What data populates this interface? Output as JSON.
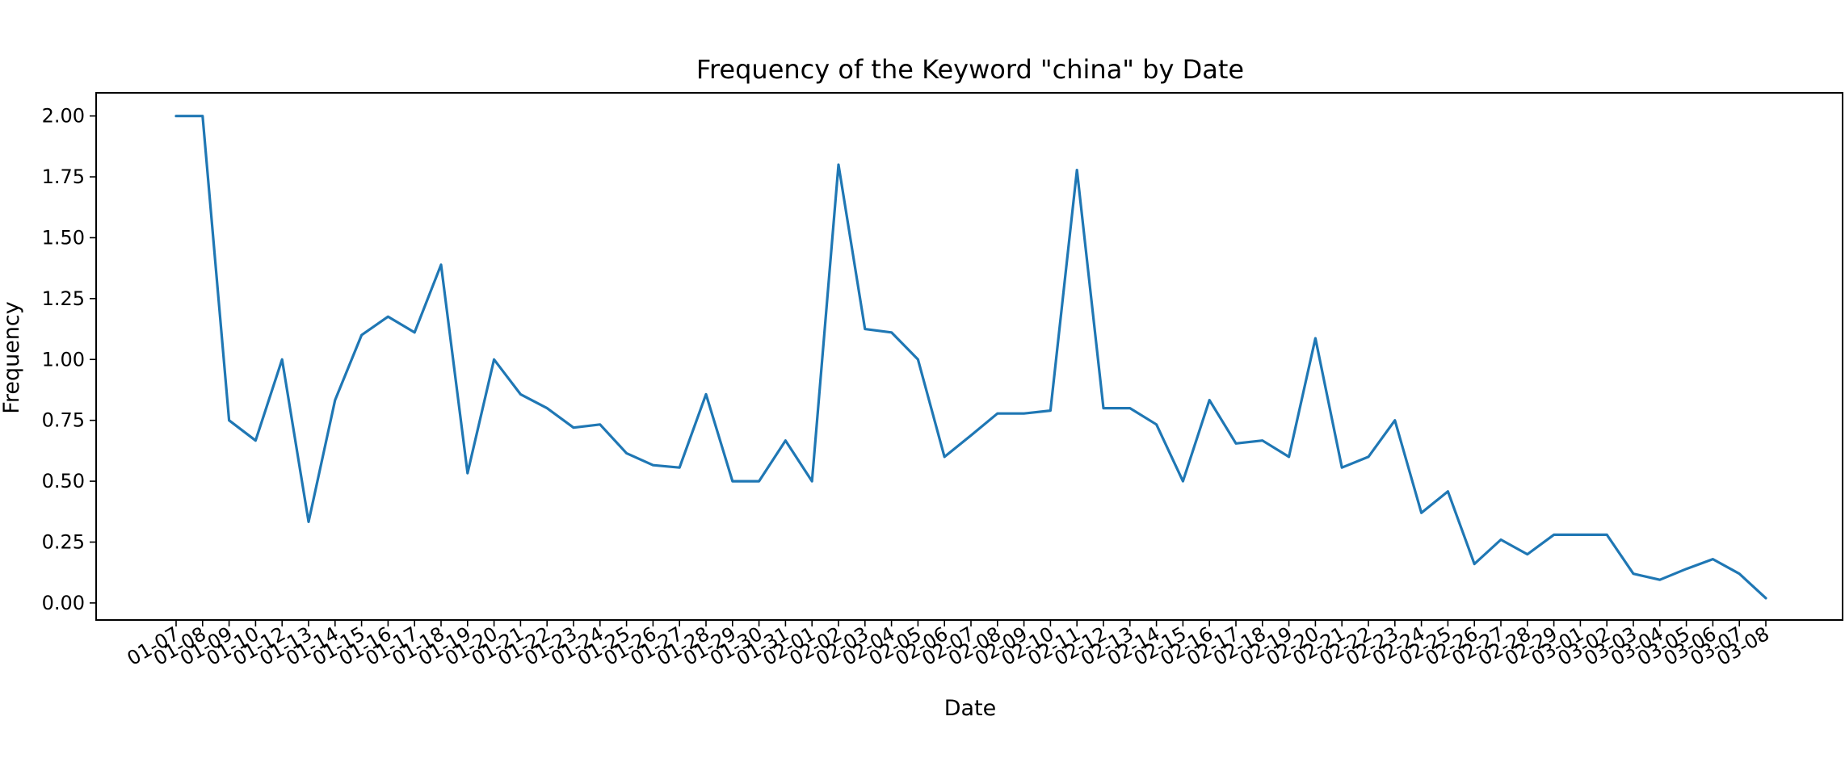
{
  "chart_data": {
    "type": "line",
    "title": "Frequency of the Keyword \"china\" by Date",
    "xlabel": "Date",
    "ylabel": "Frequency",
    "ylim": [
      -0.07,
      2.095
    ],
    "yticks": [
      0.0,
      0.25,
      0.5,
      0.75,
      1.0,
      1.25,
      1.5,
      1.75,
      2.0
    ],
    "ytick_labels": [
      "0.00",
      "0.25",
      "0.50",
      "0.75",
      "1.00",
      "1.25",
      "1.50",
      "1.75",
      "2.00"
    ],
    "grid": false,
    "line_color": "#1f77b4",
    "categories": [
      "01-07",
      "01-08",
      "01-09",
      "01-10",
      "01-12",
      "01-13",
      "01-14",
      "01-15",
      "01-16",
      "01-17",
      "01-18",
      "01-19",
      "01-20",
      "01-21",
      "01-22",
      "01-23",
      "01-24",
      "01-25",
      "01-26",
      "01-27",
      "01-28",
      "01-29",
      "01-30",
      "01-31",
      "02-01",
      "02-02",
      "02-03",
      "02-04",
      "02-05",
      "02-06",
      "02-07",
      "02-08",
      "02-09",
      "02-10",
      "02-11",
      "02-12",
      "02-13",
      "02-14",
      "02-15",
      "02-16",
      "02-17",
      "02-18",
      "02-19",
      "02-20",
      "02-21",
      "02-22",
      "02-23",
      "02-24",
      "02-25",
      "02-26",
      "02-27",
      "02-28",
      "02-29",
      "03-01",
      "03-02",
      "03-03",
      "03-04",
      "03-05",
      "03-06",
      "03-07",
      "03-08"
    ],
    "series": [
      {
        "values": [
          2.0,
          2.0,
          0.75,
          0.667,
          1.0,
          0.333,
          0.833,
          1.1,
          1.176,
          1.111,
          1.389,
          0.533,
          1.0,
          0.857,
          0.8,
          0.72,
          0.733,
          0.615,
          0.566,
          0.556,
          0.857,
          0.5,
          0.5,
          0.667,
          0.5,
          1.8,
          1.125,
          1.111,
          1.0,
          0.6,
          0.688,
          0.778,
          0.778,
          0.79,
          1.778,
          0.8,
          0.8,
          0.733,
          0.5,
          0.833,
          0.655,
          0.667,
          0.6,
          1.087,
          0.556,
          0.6,
          0.75,
          0.37,
          0.458,
          0.16,
          0.26,
          0.2,
          0.28,
          0.28,
          0.28,
          0.12,
          0.095,
          0.14,
          0.18,
          0.12,
          0.02
        ]
      }
    ]
  }
}
